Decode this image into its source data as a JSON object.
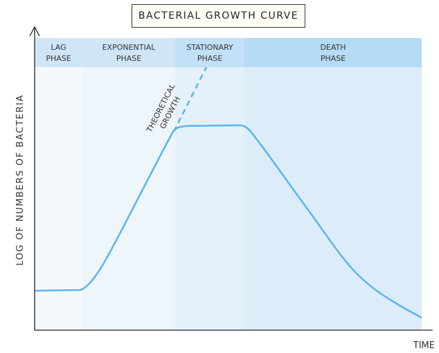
{
  "title": "BACTERIAL GROWTH CURVE",
  "axes": {
    "y_label": "LOG OF NUMBERS OF BACTERIA",
    "x_label": "TIME"
  },
  "phases": [
    {
      "line1": "LAG",
      "line2": "PHASE",
      "header_color": "#cfe6f7",
      "fill_color": "#f5f9fd"
    },
    {
      "line1": "EXPONENTIAL",
      "line2": "PHASE",
      "header_color": "#cfe6f7",
      "fill_color": "#eef5fb"
    },
    {
      "line1": "STATIONARY",
      "line2": "PHASE",
      "header_color": "#c2e0f6",
      "fill_color": "#e4f1fa"
    },
    {
      "line1": "DEATH",
      "line2": "PHASE",
      "header_color": "#b5dbf5",
      "fill_color": "#dcedf9"
    }
  ],
  "annotation": {
    "line1": "THEORETICAL",
    "line2": "GROWTH"
  },
  "curve_color": "#5ab4ee"
}
